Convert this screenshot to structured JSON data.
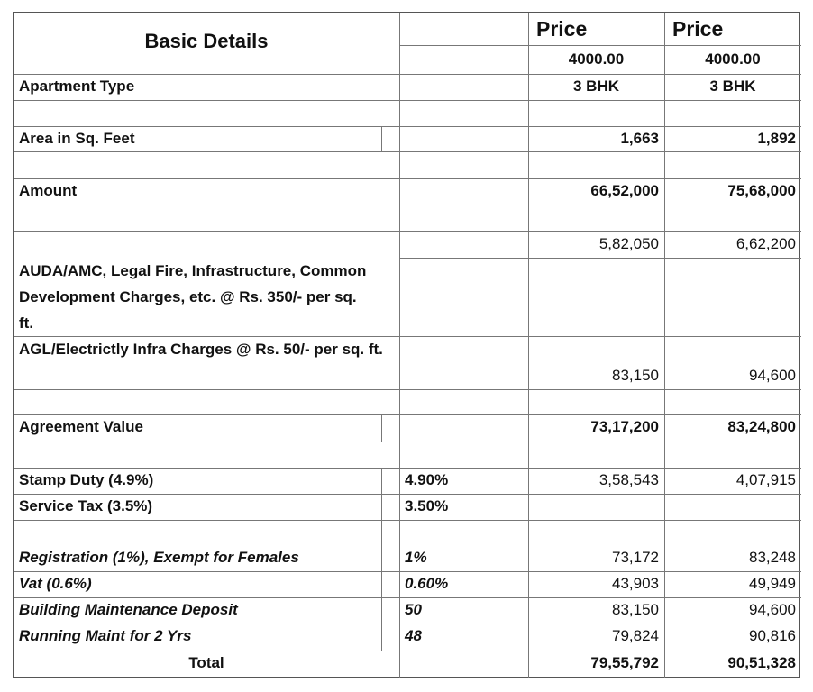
{
  "header": {
    "title": "Basic Details",
    "col1_label": "Price",
    "col2_label": "Price",
    "col1_rate": "4000.00",
    "col2_rate": "4000.00"
  },
  "rows": {
    "apartment": {
      "label": "Apartment Type",
      "v1": "3 BHK",
      "v2": "3 BHK"
    },
    "area": {
      "label": "Area in Sq. Feet",
      "v1": "1,663",
      "v2": "1,892"
    },
    "amount": {
      "label": "Amount",
      "v1": "66,52,000",
      "v2": "75,68,000"
    },
    "auda": {
      "label": "AUDA/AMC, Legal Fire, Infrastructure, Common Development Charges, etc. @ Rs. 350/- per sq. ft.",
      "v1": "5,82,050",
      "v2": "6,62,200"
    },
    "agl": {
      "label": "AGL/Electrictly Infra Charges @ Rs. 50/- per sq. ft.",
      "v1": "83,150",
      "v2": "94,600"
    },
    "agreement": {
      "label": "Agreement Value",
      "v1": "73,17,200",
      "v2": "83,24,800"
    },
    "stamp": {
      "label": "Stamp Duty (4.9%)",
      "pct": "4.90%",
      "v1": "3,58,543",
      "v2": "4,07,915"
    },
    "service": {
      "label": "Service Tax (3.5%)",
      "pct": "3.50%"
    },
    "registration": {
      "label": "Registration (1%), Exempt for Females",
      "pct": "1%",
      "v1": "73,172",
      "v2": "83,248"
    },
    "vat": {
      "label": "Vat (0.6%)",
      "pct": "0.60%",
      "v1": "43,903",
      "v2": "49,949"
    },
    "building": {
      "label": "Building Maintenance Deposit",
      "pct": "50",
      "v1": "83,150",
      "v2": "94,600"
    },
    "running": {
      "label": "Running Maint for 2 Yrs",
      "pct": "48",
      "v1": "79,824",
      "v2": "90,816"
    },
    "total": {
      "label": "Total",
      "v1": "79,55,792",
      "v2": "90,51,328"
    }
  }
}
